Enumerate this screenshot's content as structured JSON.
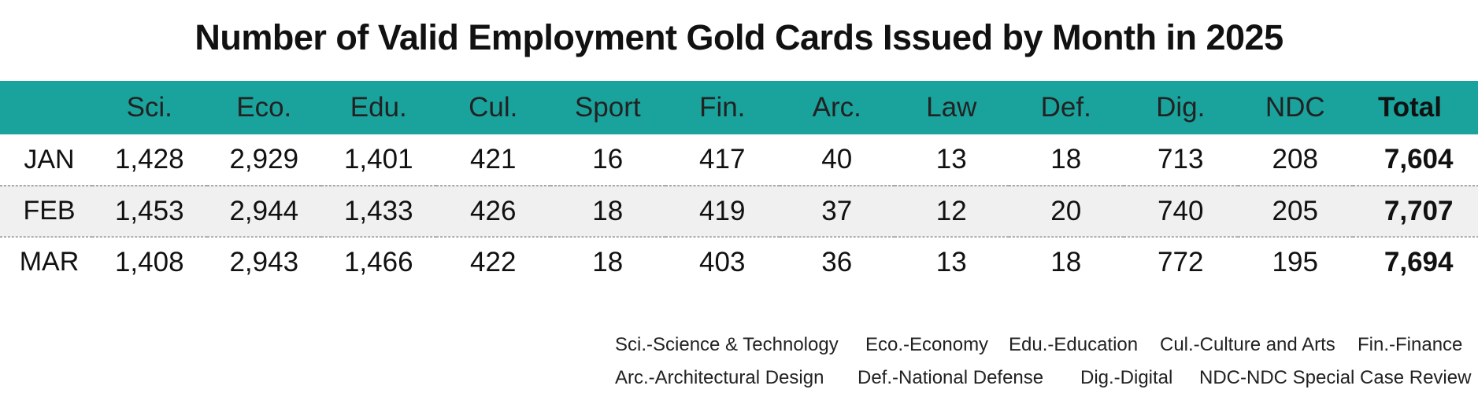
{
  "chart_data": {
    "type": "table",
    "title": "Number of Valid Employment Gold Cards Issued by Month in 2025",
    "header_color": "#1aa39d",
    "stripe_color": "#f0f0f0",
    "columns": [
      "",
      "Sci.",
      "Eco.",
      "Edu.",
      "Cul.",
      "Sport",
      "Fin.",
      "Arc.",
      "Law",
      "Def.",
      "Dig.",
      "NDC",
      "Total"
    ],
    "rows": [
      {
        "month": "JAN",
        "values": [
          "1,428",
          "2,929",
          "1,401",
          "421",
          "16",
          "417",
          "40",
          "13",
          "18",
          "713",
          "208"
        ],
        "total": "7,604"
      },
      {
        "month": "FEB",
        "values": [
          "1,453",
          "2,944",
          "1,433",
          "426",
          "18",
          "419",
          "37",
          "12",
          "20",
          "740",
          "205"
        ],
        "total": "7,707"
      },
      {
        "month": "MAR",
        "values": [
          "1,408",
          "2,943",
          "1,466",
          "422",
          "18",
          "403",
          "36",
          "13",
          "18",
          "772",
          "195"
        ],
        "total": "7,694"
      }
    ],
    "legend": [
      "Sci.-Science & Technology",
      "Eco.-Economy",
      "Edu.-Education",
      "Cul.-Culture and Arts",
      "Fin.-Finance",
      "Arc.-Architectural Design",
      "Def.-National Defense",
      "Dig.-Digital",
      "NDC-NDC Special Case Review"
    ]
  }
}
